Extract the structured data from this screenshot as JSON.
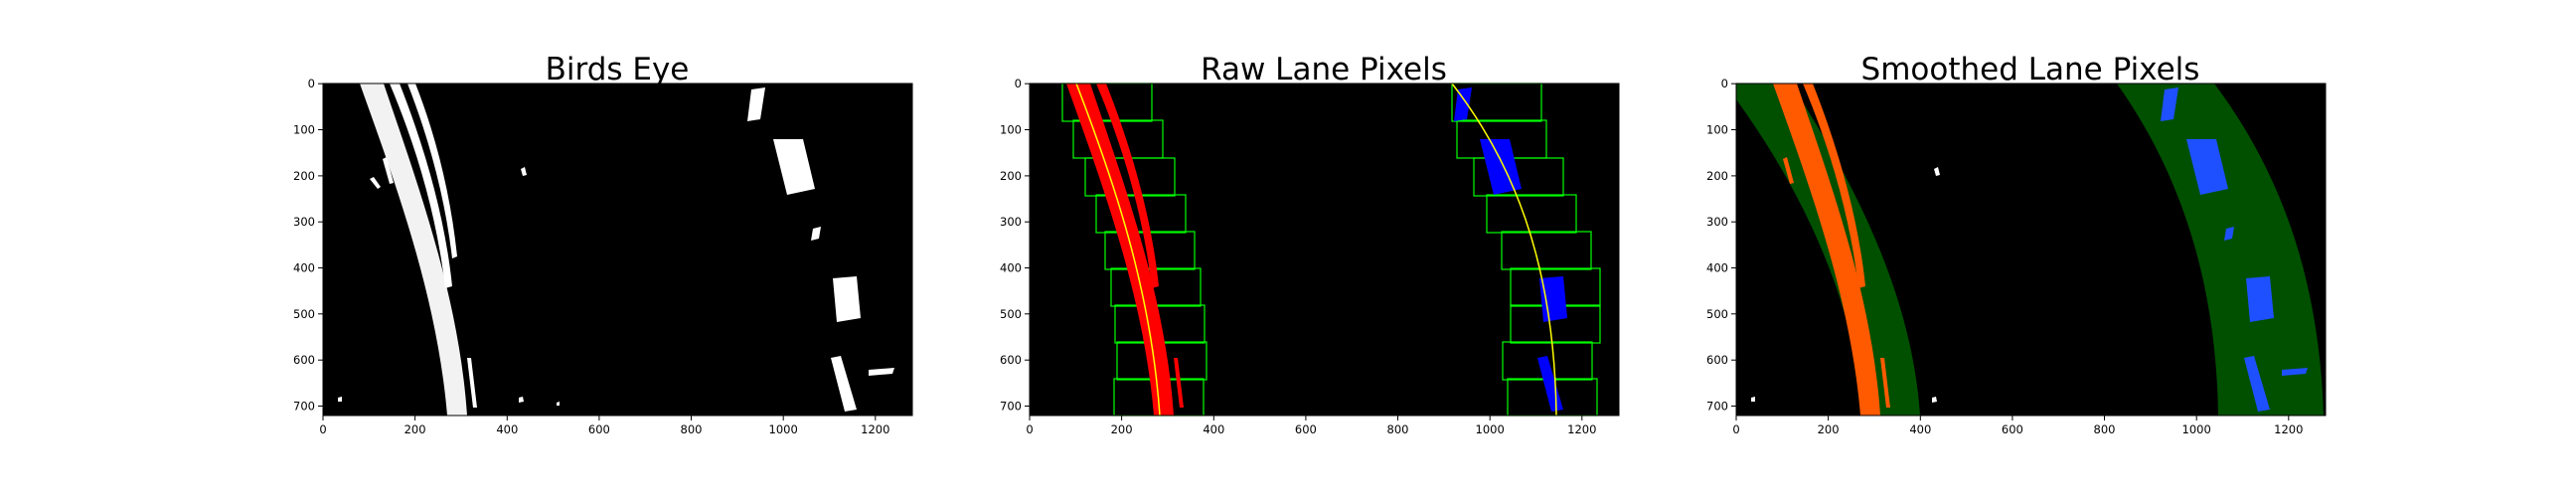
{
  "figure": {
    "panels": [
      {
        "title": "Birds Eye",
        "x_ticks": [
          "0",
          "200",
          "400",
          "600",
          "800",
          "1000",
          "1200"
        ],
        "y_ticks": [
          "0",
          "100",
          "200",
          "300",
          "400",
          "500",
          "600",
          "700"
        ]
      },
      {
        "title": "Raw Lane Pixels",
        "x_ticks": [
          "0",
          "200",
          "400",
          "600",
          "800",
          "1000",
          "1200"
        ],
        "y_ticks": [
          "0",
          "100",
          "200",
          "300",
          "400",
          "500",
          "600",
          "700"
        ]
      },
      {
        "title": "Smoothed Lane Pixels",
        "x_ticks": [
          "0",
          "200",
          "400",
          "600",
          "800",
          "1000",
          "1200"
        ],
        "y_ticks": [
          "0",
          "100",
          "200",
          "300",
          "400",
          "500",
          "600",
          "700"
        ]
      }
    ],
    "colors": {
      "background": "#000000",
      "binary_pixels": "#ffffff",
      "left_lane_raw": "#ff0000",
      "right_lane_raw": "#0000ff",
      "fit_line": "#ffff00",
      "search_window": "#00ff00",
      "left_lane_smoothed": "#ff5a00",
      "right_lane_smoothed": "#1e50ff",
      "lane_band": "#005000"
    }
  }
}
